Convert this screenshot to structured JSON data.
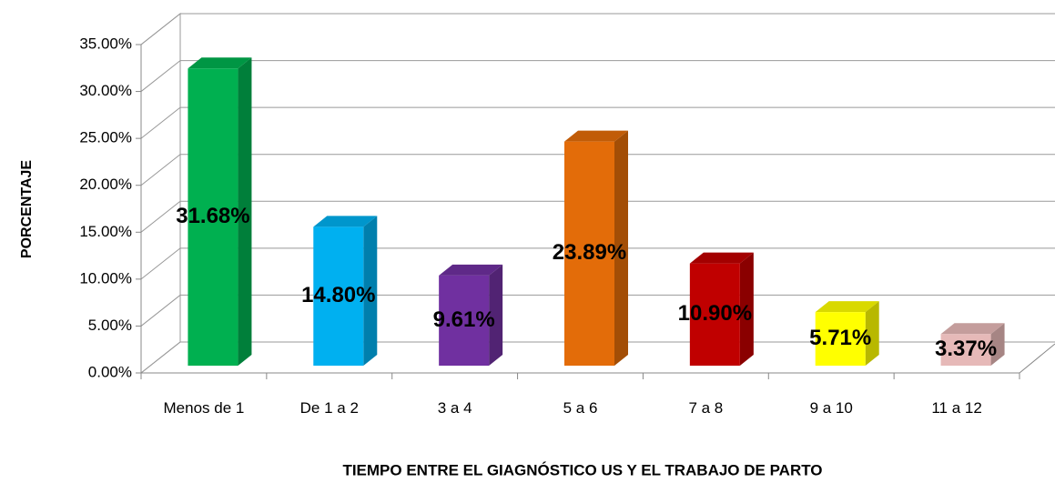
{
  "chart_data": {
    "type": "bar3d",
    "categories": [
      "Menos de 1",
      "De 1 a 2",
      "3 a 4",
      "5 a 6",
      "7 a 8",
      "9 a 10",
      "11 a 12"
    ],
    "values": [
      31.68,
      14.8,
      9.61,
      23.89,
      10.9,
      5.71,
      3.37
    ],
    "value_labels": [
      "31.68%",
      "14.80%",
      "9.61%",
      "23.89%",
      "10.90%",
      "5.71%",
      "3.37%"
    ],
    "colors": [
      "#00b050",
      "#00b0f0",
      "#7030a0",
      "#e36c09",
      "#c00000",
      "#ffff00",
      "#e6b9b8"
    ],
    "ylim": [
      0,
      35
    ],
    "yticks": [
      {
        "value": 0,
        "label": "0.00%"
      },
      {
        "value": 5,
        "label": "5.00%"
      },
      {
        "value": 10,
        "label": "10.00%"
      },
      {
        "value": 15,
        "label": "15.00%"
      },
      {
        "value": 20,
        "label": "20.00%"
      },
      {
        "value": 25,
        "label": "25.00%"
      },
      {
        "value": 30,
        "label": "30.00%"
      },
      {
        "value": 35,
        "label": "35.00%"
      }
    ],
    "ylabel": "PORCENTAJE",
    "xlabel": "TIEMPO ENTRE EL GIAGNÓSTICO US Y EL TRABAJO DE PARTO",
    "grid": true
  }
}
